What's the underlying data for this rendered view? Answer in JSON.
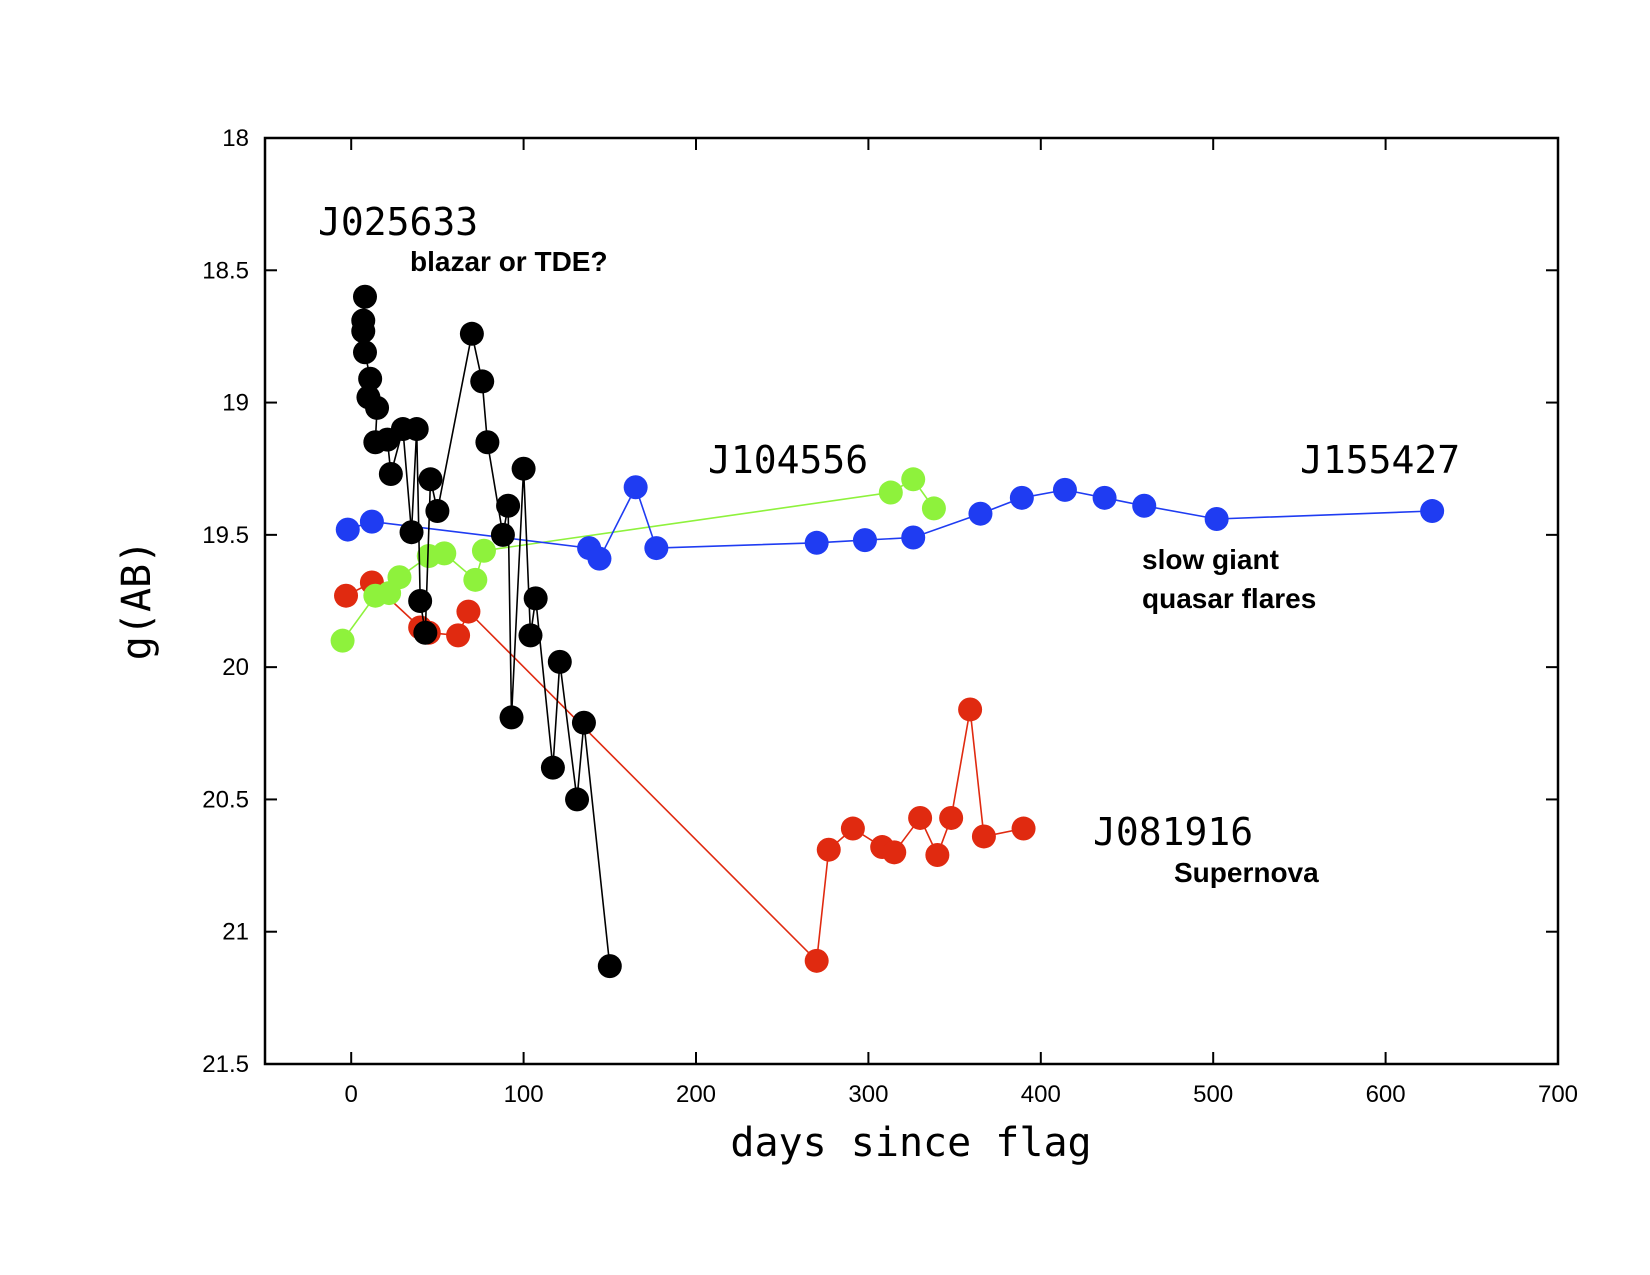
{
  "chart_data": {
    "type": "scatter",
    "xlabel": "days since flag",
    "ylabel": "g(AB)",
    "xlim": [
      -50,
      700
    ],
    "ylim": [
      18,
      21.5
    ],
    "y_inverted": true,
    "grid": false,
    "xticks": [
      0,
      100,
      200,
      300,
      400,
      500,
      600,
      700
    ],
    "yticks": [
      18,
      18.5,
      19,
      19.5,
      20,
      20.5,
      21,
      21.5
    ],
    "xtick_labels": [
      "0",
      "100",
      "200",
      "300",
      "400",
      "500",
      "600",
      "700"
    ],
    "ytick_labels": [
      "18",
      "18.5",
      "19",
      "19.5",
      "20",
      "20.5",
      "21",
      "21.5"
    ],
    "series": [
      {
        "name": "J081916",
        "color": "#e02a10",
        "x": [
          -3,
          12,
          40,
          45,
          62,
          68,
          270,
          277,
          291,
          308,
          315,
          330,
          340,
          348,
          359,
          367,
          390
        ],
        "y": [
          19.73,
          19.68,
          19.85,
          19.87,
          19.88,
          19.79,
          21.11,
          20.69,
          20.61,
          20.68,
          20.7,
          20.57,
          20.71,
          20.57,
          20.16,
          20.64,
          20.61
        ]
      },
      {
        "name": "J104556",
        "color": "#8ef23c",
        "x": [
          -5,
          14,
          22,
          28,
          45,
          54,
          72,
          77,
          313,
          326,
          338
        ],
        "y": [
          19.9,
          19.73,
          19.72,
          19.66,
          19.58,
          19.57,
          19.67,
          19.56,
          19.34,
          19.29,
          19.4
        ]
      },
      {
        "name": "J155427",
        "color": "#1f3cf2",
        "x": [
          -2,
          12,
          138,
          144,
          165,
          177,
          270,
          298,
          326,
          365,
          389,
          414,
          437,
          460,
          502,
          627
        ],
        "y": [
          19.48,
          19.45,
          19.55,
          19.59,
          19.32,
          19.55,
          19.53,
          19.52,
          19.51,
          19.42,
          19.36,
          19.33,
          19.36,
          19.39,
          19.44,
          19.41
        ]
      },
      {
        "name": "J025633",
        "color": "#000000",
        "x": [
          8,
          7,
          7,
          8,
          11,
          10,
          15,
          14,
          21,
          23,
          30,
          35,
          38,
          40,
          43,
          46,
          50,
          70,
          76,
          79,
          88,
          91,
          93,
          100,
          104,
          107,
          117,
          121,
          131,
          135,
          150
        ],
        "y": [
          18.6,
          18.69,
          18.73,
          18.81,
          18.91,
          18.98,
          19.02,
          19.15,
          19.14,
          19.27,
          19.1,
          19.49,
          19.1,
          19.75,
          19.87,
          19.29,
          19.41,
          18.74,
          18.92,
          19.15,
          19.5,
          19.39,
          20.19,
          19.25,
          19.88,
          19.74,
          20.38,
          19.98,
          20.5,
          20.21,
          21.13
        ]
      }
    ]
  },
  "labels": {
    "j025633": "J025633",
    "j025633_note": "blazar or TDE?",
    "j104556": "J104556",
    "j155427": "J155427",
    "j155427_note_1": "slow giant",
    "j155427_note_2": "quasar flares",
    "j081916": "J081916",
    "j081916_note": "Supernova"
  }
}
